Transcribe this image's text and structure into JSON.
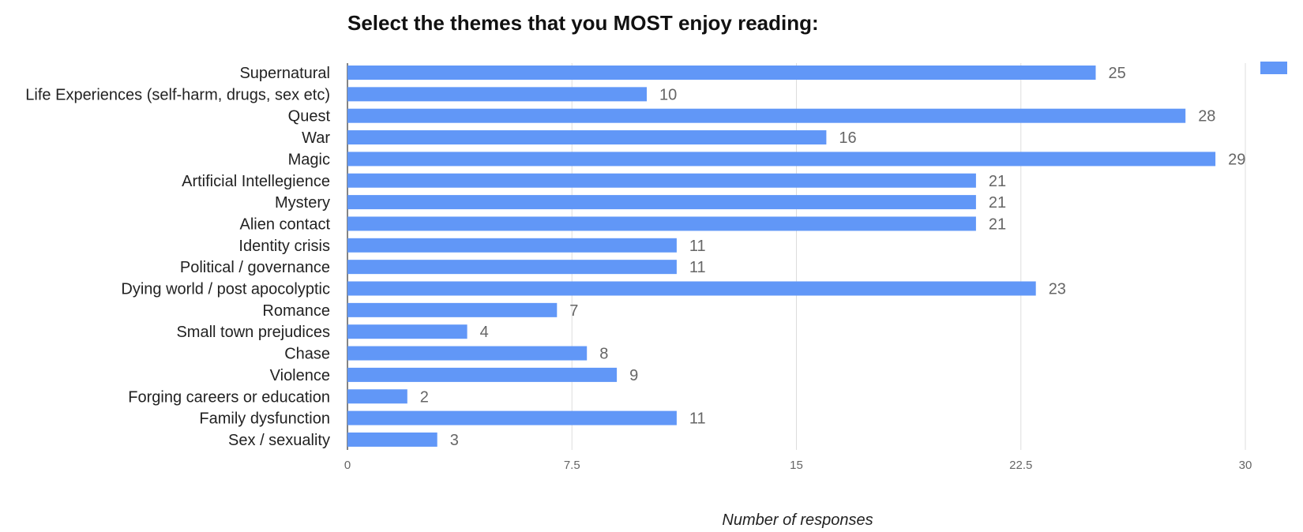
{
  "chart_data": {
    "type": "bar",
    "orientation": "horizontal",
    "title": "Select the themes that you MOST enjoy reading:",
    "xlabel": "Number of responses",
    "ylabel": "",
    "xlim": [
      0,
      30
    ],
    "ticks": [
      0,
      7.5,
      15,
      22.5,
      30
    ],
    "tick_labels": [
      "0",
      "7.5",
      "15",
      "22.5",
      "30"
    ],
    "grid": true,
    "legend": "top-right",
    "bar_color": "#6197f7",
    "categories": [
      "Supernatural",
      "Life Experiences (self-harm, drugs, sex etc)",
      "Quest",
      "War",
      "Magic",
      "Artificial Intellegience",
      "Mystery",
      "Alien contact",
      "Identity crisis",
      "Political / governance",
      "Dying world / post apocolyptic",
      "Romance",
      "Small town prejudices",
      "Chase",
      "Violence",
      "Forging careers or education",
      "Family dysfunction",
      "Sex / sexuality"
    ],
    "values": [
      25,
      10,
      28,
      16,
      29,
      21,
      21,
      21,
      11,
      11,
      23,
      7,
      4,
      8,
      9,
      2,
      11,
      3
    ],
    "value_labels": [
      "25",
      "10",
      "28",
      "16",
      "29",
      "21",
      "21",
      "21",
      "11",
      "11",
      "23",
      "7",
      "4",
      "8",
      "9",
      "2",
      "11",
      "3"
    ]
  }
}
